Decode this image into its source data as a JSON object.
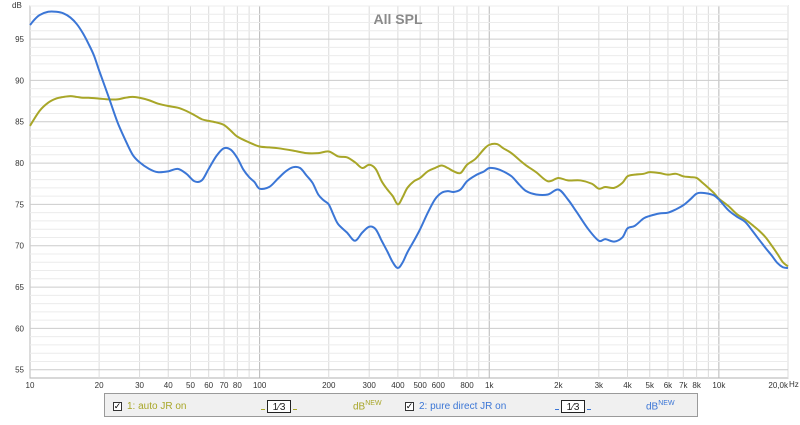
{
  "chart_data": {
    "type": "line",
    "title": "All SPL",
    "ylabel": "dB",
    "xunit": "Hz",
    "xscale": "log",
    "xlim": [
      10,
      20000
    ],
    "ylim": [
      54,
      99
    ],
    "grid": true,
    "x_tick_labels": [
      {
        "v": 10,
        "t": "10"
      },
      {
        "v": 20,
        "t": "20"
      },
      {
        "v": 30,
        "t": "30"
      },
      {
        "v": 40,
        "t": "40"
      },
      {
        "v": 50,
        "t": "50"
      },
      {
        "v": 60,
        "t": "60"
      },
      {
        "v": 70,
        "t": "70"
      },
      {
        "v": 80,
        "t": "80"
      },
      {
        "v": 100,
        "t": "100"
      },
      {
        "v": 200,
        "t": "200"
      },
      {
        "v": 300,
        "t": "300"
      },
      {
        "v": 400,
        "t": "400"
      },
      {
        "v": 500,
        "t": "500"
      },
      {
        "v": 600,
        "t": "600"
      },
      {
        "v": 800,
        "t": "800"
      },
      {
        "v": 1000,
        "t": "1k"
      },
      {
        "v": 2000,
        "t": "2k"
      },
      {
        "v": 3000,
        "t": "3k"
      },
      {
        "v": 4000,
        "t": "4k"
      },
      {
        "v": 5000,
        "t": "5k"
      },
      {
        "v": 6000,
        "t": "6k"
      },
      {
        "v": 7000,
        "t": "7k"
      },
      {
        "v": 8000,
        "t": "8k"
      },
      {
        "v": 10000,
        "t": "10k"
      },
      {
        "v": 20000,
        "t": "20,0k"
      }
    ],
    "y_ticks": [
      95,
      90,
      85,
      80,
      75,
      70,
      65,
      60,
      55
    ],
    "series": [
      {
        "name": "1: auto JR on",
        "color": "#a8a628",
        "points": [
          [
            10,
            84.5
          ],
          [
            11,
            86.3
          ],
          [
            12,
            87.3
          ],
          [
            13,
            87.8
          ],
          [
            14,
            88.0
          ],
          [
            15,
            88.1
          ],
          [
            16,
            88.0
          ],
          [
            17,
            87.9
          ],
          [
            18,
            87.9
          ],
          [
            20,
            87.8
          ],
          [
            22,
            87.7
          ],
          [
            24,
            87.7
          ],
          [
            26,
            87.9
          ],
          [
            28,
            88.0
          ],
          [
            30,
            87.9
          ],
          [
            33,
            87.6
          ],
          [
            36,
            87.2
          ],
          [
            40,
            86.9
          ],
          [
            44,
            86.7
          ],
          [
            48,
            86.3
          ],
          [
            52,
            85.8
          ],
          [
            56,
            85.3
          ],
          [
            60,
            85.1
          ],
          [
            65,
            84.9
          ],
          [
            70,
            84.6
          ],
          [
            75,
            83.9
          ],
          [
            80,
            83.2
          ],
          [
            90,
            82.5
          ],
          [
            100,
            82.0
          ],
          [
            110,
            81.9
          ],
          [
            120,
            81.8
          ],
          [
            140,
            81.5
          ],
          [
            160,
            81.2
          ],
          [
            180,
            81.2
          ],
          [
            200,
            81.4
          ],
          [
            220,
            80.8
          ],
          [
            240,
            80.7
          ],
          [
            260,
            80.1
          ],
          [
            280,
            79.4
          ],
          [
            300,
            79.8
          ],
          [
            320,
            79.3
          ],
          [
            340,
            77.8
          ],
          [
            360,
            76.8
          ],
          [
            380,
            76.0
          ],
          [
            400,
            75.0
          ],
          [
            420,
            75.9
          ],
          [
            440,
            77.0
          ],
          [
            470,
            77.8
          ],
          [
            500,
            78.2
          ],
          [
            540,
            79.0
          ],
          [
            580,
            79.4
          ],
          [
            620,
            79.7
          ],
          [
            660,
            79.4
          ],
          [
            700,
            79.0
          ],
          [
            750,
            78.8
          ],
          [
            800,
            79.8
          ],
          [
            870,
            80.5
          ],
          [
            950,
            81.7
          ],
          [
            1000,
            82.2
          ],
          [
            1080,
            82.3
          ],
          [
            1150,
            81.8
          ],
          [
            1250,
            81.2
          ],
          [
            1350,
            80.4
          ],
          [
            1450,
            79.7
          ],
          [
            1600,
            78.9
          ],
          [
            1800,
            77.8
          ],
          [
            2000,
            78.2
          ],
          [
            2200,
            77.9
          ],
          [
            2500,
            77.9
          ],
          [
            2800,
            77.5
          ],
          [
            3000,
            76.9
          ],
          [
            3200,
            77.1
          ],
          [
            3500,
            77.0
          ],
          [
            3800,
            77.6
          ],
          [
            4000,
            78.4
          ],
          [
            4300,
            78.6
          ],
          [
            4700,
            78.7
          ],
          [
            5000,
            78.9
          ],
          [
            5500,
            78.8
          ],
          [
            6000,
            78.6
          ],
          [
            6500,
            78.7
          ],
          [
            7000,
            78.4
          ],
          [
            7500,
            78.3
          ],
          [
            8000,
            78.2
          ],
          [
            8500,
            77.6
          ],
          [
            9000,
            77.0
          ],
          [
            9500,
            76.4
          ],
          [
            10000,
            75.7
          ],
          [
            11000,
            74.8
          ],
          [
            12000,
            73.8
          ],
          [
            13000,
            73.2
          ],
          [
            14000,
            72.5
          ],
          [
            15000,
            71.8
          ],
          [
            16000,
            71.0
          ],
          [
            17000,
            70.0
          ],
          [
            18000,
            69.0
          ],
          [
            19000,
            68.0
          ],
          [
            20000,
            67.5
          ]
        ]
      },
      {
        "name": "2: pure direct JR on",
        "color": "#3b76d6",
        "points": [
          [
            10,
            96.7
          ],
          [
            10.5,
            97.4
          ],
          [
            11,
            97.9
          ],
          [
            12,
            98.3
          ],
          [
            13,
            98.3
          ],
          [
            14,
            98.1
          ],
          [
            15,
            97.6
          ],
          [
            16,
            96.8
          ],
          [
            17,
            95.7
          ],
          [
            18,
            94.4
          ],
          [
            19,
            93.0
          ],
          [
            20,
            91.2
          ],
          [
            22,
            88.0
          ],
          [
            24,
            85.0
          ],
          [
            26,
            82.8
          ],
          [
            28,
            81.0
          ],
          [
            30,
            80.1
          ],
          [
            33,
            79.3
          ],
          [
            36,
            78.9
          ],
          [
            40,
            79.0
          ],
          [
            44,
            79.3
          ],
          [
            48,
            78.7
          ],
          [
            52,
            77.8
          ],
          [
            56,
            77.9
          ],
          [
            60,
            79.3
          ],
          [
            65,
            80.9
          ],
          [
            70,
            81.8
          ],
          [
            75,
            81.6
          ],
          [
            80,
            80.6
          ],
          [
            85,
            79.2
          ],
          [
            90,
            78.3
          ],
          [
            95,
            77.7
          ],
          [
            100,
            76.9
          ],
          [
            110,
            77.1
          ],
          [
            120,
            78.1
          ],
          [
            130,
            79.0
          ],
          [
            140,
            79.5
          ],
          [
            150,
            79.4
          ],
          [
            160,
            78.5
          ],
          [
            170,
            77.6
          ],
          [
            180,
            76.2
          ],
          [
            190,
            75.5
          ],
          [
            200,
            75.0
          ],
          [
            210,
            73.7
          ],
          [
            220,
            72.6
          ],
          [
            240,
            71.6
          ],
          [
            260,
            70.6
          ],
          [
            280,
            71.6
          ],
          [
            300,
            72.3
          ],
          [
            320,
            72.0
          ],
          [
            340,
            70.6
          ],
          [
            360,
            69.3
          ],
          [
            380,
            68.0
          ],
          [
            400,
            67.3
          ],
          [
            420,
            68.0
          ],
          [
            440,
            69.2
          ],
          [
            470,
            70.6
          ],
          [
            500,
            72.0
          ],
          [
            540,
            74.0
          ],
          [
            580,
            75.6
          ],
          [
            620,
            76.4
          ],
          [
            660,
            76.6
          ],
          [
            700,
            76.5
          ],
          [
            750,
            76.8
          ],
          [
            800,
            77.8
          ],
          [
            870,
            78.5
          ],
          [
            950,
            79.0
          ],
          [
            1000,
            79.4
          ],
          [
            1080,
            79.3
          ],
          [
            1150,
            79.0
          ],
          [
            1250,
            78.4
          ],
          [
            1350,
            77.4
          ],
          [
            1450,
            76.6
          ],
          [
            1600,
            76.2
          ],
          [
            1800,
            76.2
          ],
          [
            2000,
            76.8
          ],
          [
            2200,
            75.6
          ],
          [
            2400,
            74.1
          ],
          [
            2700,
            72.0
          ],
          [
            3000,
            70.6
          ],
          [
            3200,
            70.8
          ],
          [
            3500,
            70.5
          ],
          [
            3800,
            71.0
          ],
          [
            4000,
            72.1
          ],
          [
            4300,
            72.4
          ],
          [
            4700,
            73.3
          ],
          [
            5000,
            73.6
          ],
          [
            5500,
            73.9
          ],
          [
            6000,
            74.0
          ],
          [
            6500,
            74.4
          ],
          [
            7000,
            74.9
          ],
          [
            7500,
            75.6
          ],
          [
            8000,
            76.3
          ],
          [
            8500,
            76.4
          ],
          [
            9000,
            76.3
          ],
          [
            9500,
            76.1
          ],
          [
            10000,
            75.6
          ],
          [
            11000,
            74.3
          ],
          [
            12000,
            73.5
          ],
          [
            13000,
            72.9
          ],
          [
            14000,
            71.8
          ],
          [
            15000,
            70.7
          ],
          [
            16000,
            69.7
          ],
          [
            17000,
            68.8
          ],
          [
            18000,
            67.9
          ],
          [
            19000,
            67.4
          ],
          [
            20000,
            67.3
          ]
        ]
      }
    ]
  },
  "legend": {
    "items": [
      {
        "checked": "✓",
        "label": "1: auto JR on",
        "smoothing": "1⁄3",
        "db": "dB",
        "db_sup": "NEW",
        "color": "#a8a628"
      },
      {
        "checked": "✓",
        "label": "2: pure direct JR on",
        "smoothing": "1⁄3",
        "db": "dB",
        "db_sup": "NEW",
        "color": "#3b76d6"
      }
    ]
  }
}
